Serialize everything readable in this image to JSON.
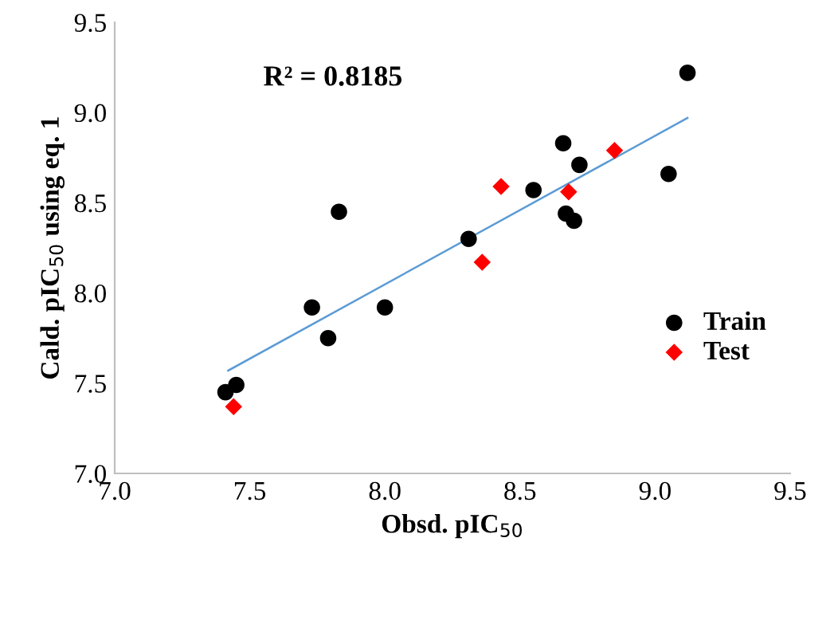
{
  "chart_data": {
    "type": "scatter",
    "xlabel": "Obsd. pIC$_{50}$",
    "ylabel": "Cald. pIC$_{50}$ using eq. 1",
    "xlim": [
      7.0,
      9.5
    ],
    "ylim": [
      7.0,
      9.5
    ],
    "xticks": [
      {
        "value": 7.0,
        "label": "7.0"
      },
      {
        "value": 7.5,
        "label": "7.5"
      },
      {
        "value": 8.0,
        "label": "8.0"
      },
      {
        "value": 8.5,
        "label": "8.5"
      },
      {
        "value": 9.0,
        "label": "9.0"
      },
      {
        "value": 9.5,
        "label": "9.5"
      }
    ],
    "yticks": [
      {
        "value": 7.0,
        "label": "7.0"
      },
      {
        "value": 7.5,
        "label": "7.5"
      },
      {
        "value": 8.0,
        "label": "8.0"
      },
      {
        "value": 8.5,
        "label": "8.5"
      },
      {
        "value": 9.0,
        "label": "9.0"
      },
      {
        "value": 9.5,
        "label": "9.5"
      }
    ],
    "grid": false,
    "legend": "right",
    "annotations": [
      "R² = 0.8185"
    ],
    "series": [
      {
        "name": "Train",
        "color": "#000000",
        "marker": "circle",
        "x": [
          9.12,
          8.66,
          8.72,
          9.05,
          8.55,
          7.83,
          8.67,
          8.7,
          8.31,
          7.73,
          8.0,
          7.79,
          7.41,
          7.45
        ],
        "values": [
          9.22,
          8.83,
          8.71,
          8.66,
          8.57,
          8.45,
          8.44,
          8.4,
          8.3,
          7.92,
          7.92,
          7.75,
          7.45,
          7.49
        ]
      },
      {
        "name": "Test",
        "color": "#ff0000",
        "marker": "diamond",
        "x": [
          8.43,
          8.68,
          8.85,
          8.36,
          7.44
        ],
        "values": [
          8.59,
          8.56,
          8.79,
          8.17,
          7.37
        ]
      },
      {
        "type": "line",
        "color": "#5b9bd5",
        "marker": "none",
        "x": [
          7.42,
          9.12
        ],
        "values": [
          7.57,
          8.97
        ]
      }
    ]
  }
}
